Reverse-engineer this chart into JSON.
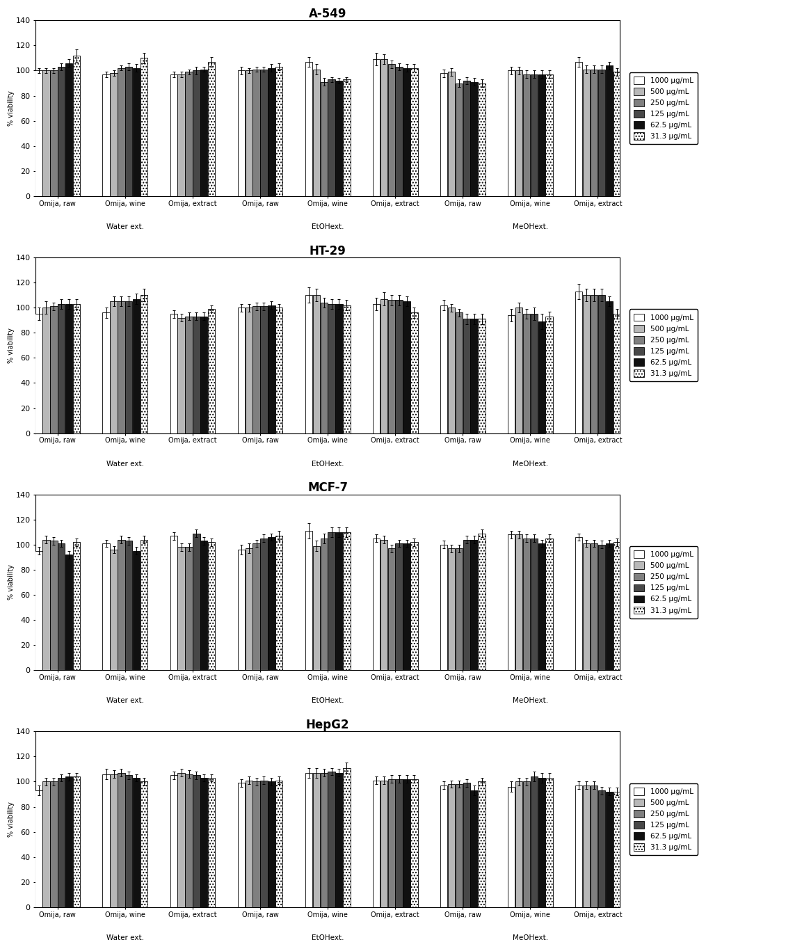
{
  "panels": [
    {
      "title": "A-549",
      "groups": [
        {
          "label": "Omija, raw",
          "ext": "Water ext.",
          "values": [
            100,
            100,
            100,
            103,
            106,
            112
          ],
          "errors": [
            2,
            2,
            2,
            3,
            3,
            5
          ]
        },
        {
          "label": "Omija, wine",
          "ext": "Water ext.",
          "values": [
            97,
            98,
            102,
            103,
            102,
            110
          ],
          "errors": [
            2,
            2,
            2,
            3,
            3,
            4
          ]
        },
        {
          "label": "Omija, extract",
          "ext": "Water ext.",
          "values": [
            97,
            97,
            99,
            100,
            101,
            107
          ],
          "errors": [
            2,
            2,
            2,
            3,
            2,
            4
          ]
        },
        {
          "label": "Omija, raw",
          "ext": "EtOHext.",
          "values": [
            100,
            100,
            101,
            101,
            102,
            103
          ],
          "errors": [
            3,
            2,
            2,
            2,
            3,
            3
          ]
        },
        {
          "label": "Omija, wine",
          "ext": "EtOHext.",
          "values": [
            107,
            101,
            91,
            93,
            92,
            93
          ],
          "errors": [
            4,
            4,
            3,
            2,
            2,
            2
          ]
        },
        {
          "label": "Omija, extract",
          "ext": "EtOHext.",
          "values": [
            109,
            109,
            105,
            103,
            102,
            102
          ],
          "errors": [
            5,
            4,
            3,
            3,
            3,
            3
          ]
        },
        {
          "label": "Omija, raw",
          "ext": "MeOHext.",
          "values": [
            98,
            99,
            90,
            92,
            91,
            90
          ],
          "errors": [
            3,
            3,
            3,
            3,
            3,
            3
          ]
        },
        {
          "label": "Omija, wine",
          "ext": "MeOHext.",
          "values": [
            100,
            100,
            97,
            97,
            97,
            97
          ],
          "errors": [
            3,
            3,
            3,
            3,
            3,
            3
          ]
        },
        {
          "label": "Omija, extract",
          "ext": "MeOHext.",
          "values": [
            107,
            101,
            101,
            101,
            104,
            99
          ],
          "errors": [
            4,
            3,
            3,
            3,
            3,
            3
          ]
        }
      ]
    },
    {
      "title": "HT-29",
      "groups": [
        {
          "label": "Omija, raw",
          "ext": "Water ext.",
          "values": [
            95,
            100,
            101,
            103,
            103,
            103
          ],
          "errors": [
            5,
            5,
            3,
            4,
            4,
            4
          ]
        },
        {
          "label": "Omija, wine",
          "ext": "Water ext.",
          "values": [
            96,
            105,
            105,
            105,
            107,
            110
          ],
          "errors": [
            4,
            4,
            4,
            4,
            4,
            5
          ]
        },
        {
          "label": "Omija, extract",
          "ext": "Water ext.",
          "values": [
            95,
            92,
            93,
            93,
            93,
            99
          ],
          "errors": [
            3,
            3,
            3,
            3,
            3,
            3
          ]
        },
        {
          "label": "Omija, raw",
          "ext": "EtOHext.",
          "values": [
            100,
            100,
            101,
            101,
            102,
            100
          ],
          "errors": [
            3,
            3,
            3,
            3,
            3,
            3
          ]
        },
        {
          "label": "Omija, wine",
          "ext": "EtOHext.",
          "values": [
            110,
            110,
            104,
            103,
            103,
            102
          ],
          "errors": [
            6,
            5,
            4,
            4,
            4,
            4
          ]
        },
        {
          "label": "Omija, extract",
          "ext": "EtOHext.",
          "values": [
            103,
            107,
            106,
            106,
            105,
            96
          ],
          "errors": [
            5,
            5,
            4,
            4,
            4,
            4
          ]
        },
        {
          "label": "Omija, raw",
          "ext": "MeOHext.",
          "values": [
            102,
            100,
            96,
            91,
            91,
            91
          ],
          "errors": [
            4,
            3,
            3,
            4,
            4,
            4
          ]
        },
        {
          "label": "Omija, wine",
          "ext": "MeOHext.",
          "values": [
            94,
            100,
            95,
            95,
            89,
            93
          ],
          "errors": [
            5,
            4,
            4,
            5,
            6,
            4
          ]
        },
        {
          "label": "Omija, extract",
          "ext": "MeOHext.",
          "values": [
            113,
            110,
            110,
            110,
            105,
            95
          ],
          "errors": [
            6,
            5,
            5,
            5,
            4,
            4
          ]
        }
      ]
    },
    {
      "title": "MCF-7",
      "groups": [
        {
          "label": "Omija, raw",
          "ext": "Water ext.",
          "values": [
            95,
            104,
            103,
            101,
            92,
            102
          ],
          "errors": [
            3,
            3,
            3,
            3,
            3,
            3
          ]
        },
        {
          "label": "Omija, wine",
          "ext": "Water ext.",
          "values": [
            101,
            96,
            104,
            103,
            95,
            104
          ],
          "errors": [
            3,
            3,
            3,
            3,
            3,
            3
          ]
        },
        {
          "label": "Omija, extract",
          "ext": "Water ext.",
          "values": [
            107,
            98,
            98,
            109,
            103,
            102
          ],
          "errors": [
            3,
            3,
            3,
            3,
            3,
            3
          ]
        },
        {
          "label": "Omija, raw",
          "ext": "EtOHext.",
          "values": [
            96,
            97,
            101,
            105,
            106,
            107
          ],
          "errors": [
            4,
            4,
            3,
            3,
            3,
            4
          ]
        },
        {
          "label": "Omija, wine",
          "ext": "EtOHext.",
          "values": [
            111,
            99,
            105,
            110,
            110,
            110
          ],
          "errors": [
            6,
            4,
            4,
            4,
            4,
            4
          ]
        },
        {
          "label": "Omija, extract",
          "ext": "EtOHext.",
          "values": [
            105,
            104,
            97,
            101,
            101,
            102
          ],
          "errors": [
            3,
            3,
            3,
            3,
            3,
            3
          ]
        },
        {
          "label": "Omija, raw",
          "ext": "MeOHext.",
          "values": [
            100,
            97,
            97,
            104,
            104,
            109
          ],
          "errors": [
            3,
            3,
            3,
            3,
            3,
            3
          ]
        },
        {
          "label": "Omija, wine",
          "ext": "MeOHext.",
          "values": [
            108,
            108,
            105,
            105,
            101,
            105
          ],
          "errors": [
            3,
            3,
            3,
            3,
            3,
            3
          ]
        },
        {
          "label": "Omija, extract",
          "ext": "MeOHext.",
          "values": [
            106,
            101,
            101,
            100,
            101,
            102
          ],
          "errors": [
            3,
            3,
            3,
            3,
            3,
            3
          ]
        }
      ]
    },
    {
      "title": "HepG2",
      "groups": [
        {
          "label": "Omija, raw",
          "ext": "Water ext.",
          "values": [
            93,
            100,
            100,
            103,
            104,
            104
          ],
          "errors": [
            4,
            3,
            3,
            3,
            3,
            3
          ]
        },
        {
          "label": "Omija, wine",
          "ext": "Water ext.",
          "values": [
            106,
            106,
            107,
            105,
            103,
            100
          ],
          "errors": [
            4,
            3,
            3,
            3,
            3,
            3
          ]
        },
        {
          "label": "Omija, extract",
          "ext": "Water ext.",
          "values": [
            105,
            107,
            106,
            105,
            103,
            103
          ],
          "errors": [
            3,
            3,
            3,
            3,
            3,
            3
          ]
        },
        {
          "label": "Omija, raw",
          "ext": "EtOHext.",
          "values": [
            99,
            101,
            100,
            101,
            100,
            101
          ],
          "errors": [
            3,
            3,
            3,
            3,
            3,
            3
          ]
        },
        {
          "label": "Omija, wine",
          "ext": "EtOHext.",
          "values": [
            107,
            107,
            107,
            108,
            107,
            111
          ],
          "errors": [
            4,
            4,
            3,
            3,
            3,
            4
          ]
        },
        {
          "label": "Omija, extract",
          "ext": "EtOHext.",
          "values": [
            101,
            101,
            102,
            102,
            102,
            102
          ],
          "errors": [
            3,
            3,
            3,
            3,
            3,
            3
          ]
        },
        {
          "label": "Omija, raw",
          "ext": "MeOHext.",
          "values": [
            97,
            98,
            98,
            99,
            93,
            100
          ],
          "errors": [
            3,
            3,
            3,
            3,
            4,
            3
          ]
        },
        {
          "label": "Omija, wine",
          "ext": "MeOHext.",
          "values": [
            96,
            100,
            100,
            104,
            103,
            103
          ],
          "errors": [
            4,
            3,
            3,
            4,
            4,
            4
          ]
        },
        {
          "label": "Omija, extract",
          "ext": "MeOHext.",
          "values": [
            97,
            97,
            97,
            93,
            92,
            92
          ],
          "errors": [
            3,
            3,
            3,
            3,
            3,
            3
          ]
        }
      ]
    }
  ],
  "legend_labels": [
    "1000 μg/mL",
    "500 μg/mL",
    "250 μg/mL",
    "125 μg/mL",
    "62.5 μg/mL",
    "31.3 μg/mL"
  ],
  "bar_colors": [
    "#ffffff",
    "#b8b8b8",
    "#808080",
    "#484848",
    "#101010",
    "#ffffff"
  ],
  "bar_hatches": [
    null,
    null,
    null,
    null,
    null,
    "...."
  ],
  "bar_edge_colors": [
    "#000000",
    "#000000",
    "#000000",
    "#000000",
    "#000000",
    "#000000"
  ],
  "ylim": [
    0,
    140
  ],
  "yticks": [
    0,
    20,
    40,
    60,
    80,
    100,
    120,
    140
  ],
  "ext_labels": [
    "Water ext.",
    "EtOHext.",
    "MeOHext."
  ],
  "ext_group_centers": [
    1,
    4,
    7
  ]
}
